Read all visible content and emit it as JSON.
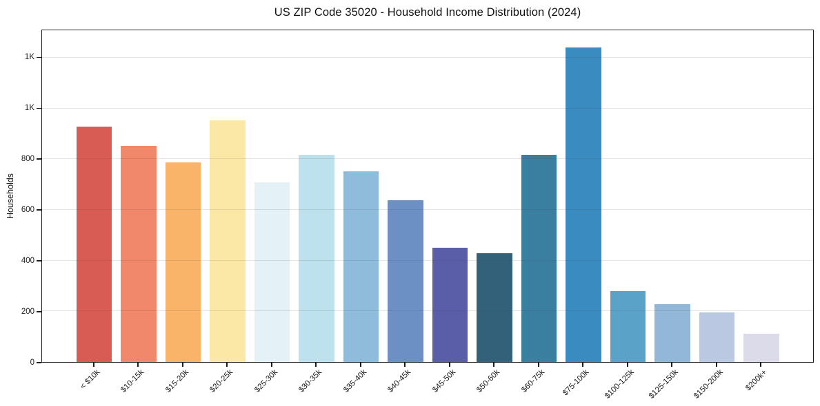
{
  "chart_data": {
    "type": "bar",
    "title": "US ZIP Code 35020 - Household Income Distribution (2024)",
    "xlabel": "",
    "ylabel": "Households",
    "categories": [
      "< $10k",
      "$10-15k",
      "$15-20k",
      "$20-25k",
      "$25-30k",
      "$30-35k",
      "$35-40k",
      "$40-45k",
      "$45-50k",
      "$50-60k",
      "$60-75k",
      "$75-100k",
      "$100-125k",
      "$125-150k",
      "$150-200k",
      "$200k+"
    ],
    "values": [
      930,
      854,
      787,
      954,
      710,
      818,
      751,
      637,
      452,
      428,
      818,
      1240,
      280,
      229,
      196,
      112
    ],
    "bar_colors": [
      "#d95c54",
      "#f1876b",
      "#f9b469",
      "#fce8a6",
      "#e4f1f6",
      "#bee1ee",
      "#90bcdb",
      "#6d90c4",
      "#5a5ea8",
      "#34617a",
      "#3a7fa0",
      "#3a8bc0",
      "#5aa2c8",
      "#93b7d9",
      "#bac8e2",
      "#dbdbe9"
    ],
    "ylim": [
      0,
      1309
    ],
    "yticks": [
      {
        "value": 0,
        "label": "0"
      },
      {
        "value": 200,
        "label": "200"
      },
      {
        "value": 400,
        "label": "400"
      },
      {
        "value": 600,
        "label": "600"
      },
      {
        "value": 800,
        "label": "800"
      },
      {
        "value": 1000,
        "label": "1K"
      },
      {
        "value": 1200,
        "label": "1K"
      }
    ],
    "grid": "horizontal",
    "legend": "none"
  }
}
